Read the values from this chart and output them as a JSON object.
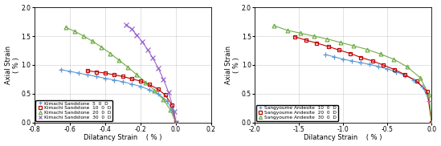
{
  "left": {
    "series": [
      {
        "label": "Kimachi Sandstone  5  0  D",
        "color": "#5b9bd5",
        "marker": "+",
        "dilatancy": [
          -0.65,
          -0.6,
          -0.55,
          -0.5,
          -0.45,
          -0.4,
          -0.35,
          -0.3,
          -0.25,
          -0.2,
          -0.15,
          -0.1,
          -0.05,
          -0.02,
          0.0
        ],
        "axial": [
          0.92,
          0.89,
          0.86,
          0.83,
          0.8,
          0.77,
          0.74,
          0.71,
          0.67,
          0.63,
          0.57,
          0.5,
          0.38,
          0.22,
          0.0
        ]
      },
      {
        "label": "Kimachi Sandstone  10  0  D",
        "color": "#c00000",
        "marker": "s",
        "dilatancy": [
          -0.5,
          -0.45,
          -0.4,
          -0.35,
          -0.3,
          -0.25,
          -0.2,
          -0.15,
          -0.1,
          -0.06,
          -0.02,
          0.0
        ],
        "axial": [
          0.9,
          0.88,
          0.86,
          0.83,
          0.8,
          0.76,
          0.72,
          0.66,
          0.58,
          0.48,
          0.3,
          0.0
        ]
      },
      {
        "label": "Kimachi Sandstone  20  0  D",
        "color": "#70ad47",
        "marker": "^",
        "dilatancy": [
          -0.62,
          -0.57,
          -0.52,
          -0.47,
          -0.42,
          -0.37,
          -0.32,
          -0.27,
          -0.22,
          -0.17,
          -0.12,
          -0.07,
          -0.03,
          0.0
        ],
        "axial": [
          1.65,
          1.58,
          1.5,
          1.41,
          1.31,
          1.2,
          1.08,
          0.96,
          0.83,
          0.7,
          0.56,
          0.4,
          0.22,
          0.0
        ]
      },
      {
        "label": "Kimachi Sandstone  30  0  D",
        "color": "#9966cc",
        "marker": "x",
        "dilatancy": [
          -0.28,
          -0.25,
          -0.22,
          -0.19,
          -0.16,
          -0.13,
          -0.1,
          -0.07,
          -0.04,
          -0.01,
          0.0
        ],
        "axial": [
          1.7,
          1.62,
          1.52,
          1.4,
          1.27,
          1.12,
          0.95,
          0.75,
          0.52,
          0.2,
          0.0
        ]
      }
    ],
    "xlim": [
      -0.8,
      0.2
    ],
    "ylim": [
      0.0,
      2.0
    ],
    "xticks": [
      -0.8,
      -0.6,
      -0.4,
      -0.2,
      0.0,
      0.2
    ],
    "yticks": [
      0.0,
      0.5,
      1.0,
      1.5,
      2.0
    ],
    "xlabel": "Dilatancy Strain",
    "xlabel2": "( % )",
    "ylabel": "Axial Strain",
    "ylabel2": "( % )"
  },
  "right": {
    "series": [
      {
        "label": "Sangyoume Andesite  10  0  D",
        "color": "#5b9bd5",
        "marker": "+",
        "dilatancy": [
          -1.2,
          -1.1,
          -1.0,
          -0.9,
          -0.8,
          -0.7,
          -0.6,
          -0.5,
          -0.4,
          -0.3,
          -0.2,
          -0.1,
          -0.03,
          0.0
        ],
        "axial": [
          1.18,
          1.14,
          1.1,
          1.07,
          1.04,
          1.01,
          0.97,
          0.93,
          0.88,
          0.82,
          0.74,
          0.62,
          0.38,
          0.0
        ]
      },
      {
        "label": "Sangyoume Andesite  20  0  D",
        "color": "#c00000",
        "marker": "s",
        "dilatancy": [
          -1.55,
          -1.42,
          -1.3,
          -1.17,
          -1.05,
          -0.92,
          -0.8,
          -0.67,
          -0.55,
          -0.42,
          -0.3,
          -0.17,
          -0.05,
          0.0
        ],
        "axial": [
          1.49,
          1.43,
          1.38,
          1.32,
          1.26,
          1.2,
          1.13,
          1.07,
          1.0,
          0.92,
          0.83,
          0.72,
          0.54,
          0.0
        ]
      },
      {
        "label": "Sangyoume Andesite  30  0  D",
        "color": "#70ad47",
        "marker": "^",
        "dilatancy": [
          -1.78,
          -1.63,
          -1.48,
          -1.33,
          -1.18,
          -1.03,
          -0.88,
          -0.73,
          -0.58,
          -0.43,
          -0.28,
          -0.13,
          -0.03,
          0.0
        ],
        "axial": [
          1.68,
          1.6,
          1.55,
          1.5,
          1.45,
          1.39,
          1.33,
          1.27,
          1.19,
          1.1,
          0.97,
          0.78,
          0.48,
          0.0
        ]
      }
    ],
    "xlim": [
      -2.0,
      0.0
    ],
    "ylim": [
      0.0,
      2.0
    ],
    "xticks": [
      -2.0,
      -1.5,
      -1.0,
      -0.5,
      0.0
    ],
    "yticks": [
      0.0,
      0.5,
      1.0,
      1.5,
      2.0
    ],
    "xlabel": "Dilatancy Strain",
    "xlabel2": "( % )",
    "ylabel": "Axial Strain",
    "ylabel2": "( % )"
  }
}
